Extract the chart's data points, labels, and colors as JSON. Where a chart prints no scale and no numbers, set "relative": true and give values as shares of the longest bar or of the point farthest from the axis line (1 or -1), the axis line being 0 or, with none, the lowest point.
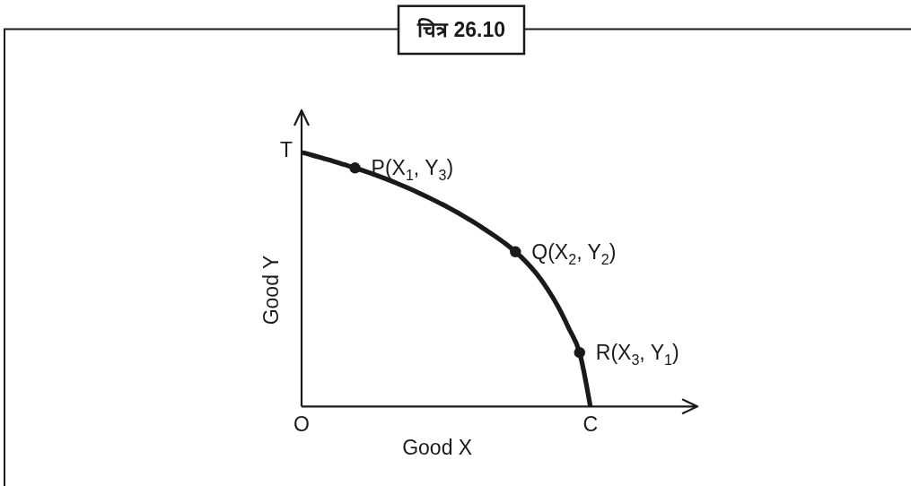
{
  "chart_data": {
    "type": "line",
    "title": "चित्र 26.10",
    "xlabel": "Good X",
    "ylabel": "Good Y",
    "relative": true,
    "categories": [
      "O",
      null,
      null,
      null,
      null,
      null,
      null,
      null,
      null,
      null,
      null,
      null,
      null,
      null,
      null,
      null,
      null,
      null,
      null,
      null,
      null,
      null,
      null,
      null,
      null,
      null,
      null,
      "C"
    ],
    "series": [
      {
        "color": "#1a1a1a",
        "values": [
          1,
          0.989,
          0.977,
          0.965,
          0.952,
          0.939,
          0.925,
          0.91,
          0.894,
          0.877,
          0.859,
          0.84,
          0.82,
          0.799,
          0.777,
          0.753,
          0.728,
          0.701,
          0.673,
          0.643,
          0.609,
          0.569,
          0.521,
          0.462,
          0.392,
          0.307,
          0.212,
          0
        ]
      },
      {
        "type": "scatter",
        "marker": "circle",
        "name": "P(X$_{1}$, Y$_{3}$)",
        "color": "#1a1a1a",
        "values": [
          null,
          null,
          null,
          null,
          null,
          0.939,
          null,
          null,
          null,
          null,
          null,
          null,
          null,
          null,
          null,
          null,
          null,
          null,
          null,
          null,
          null,
          null,
          null,
          null,
          null,
          null,
          null,
          null
        ]
      },
      {
        "type": "scatter",
        "marker": "circle",
        "name": "Q(X$_{2}$, Y$_{2}$)",
        "color": "#1a1a1a",
        "values": [
          null,
          null,
          null,
          null,
          null,
          null,
          null,
          null,
          null,
          null,
          null,
          null,
          null,
          null,
          null,
          null,
          null,
          null,
          null,
          null,
          0.609,
          null,
          null,
          null,
          null,
          null,
          null,
          null
        ]
      },
      {
        "type": "scatter",
        "marker": "circle",
        "name": "R(X$_{3}$, Y$_{1}$)",
        "color": "#1a1a1a",
        "values": [
          null,
          null,
          null,
          null,
          null,
          null,
          null,
          null,
          null,
          null,
          null,
          null,
          null,
          null,
          null,
          null,
          null,
          null,
          null,
          null,
          null,
          null,
          null,
          null,
          null,
          null,
          0.212,
          null
        ]
      }
    ],
    "annotations": [
      {
        "text": "T",
        "x": "O",
        "y": 1
      }
    ]
  }
}
